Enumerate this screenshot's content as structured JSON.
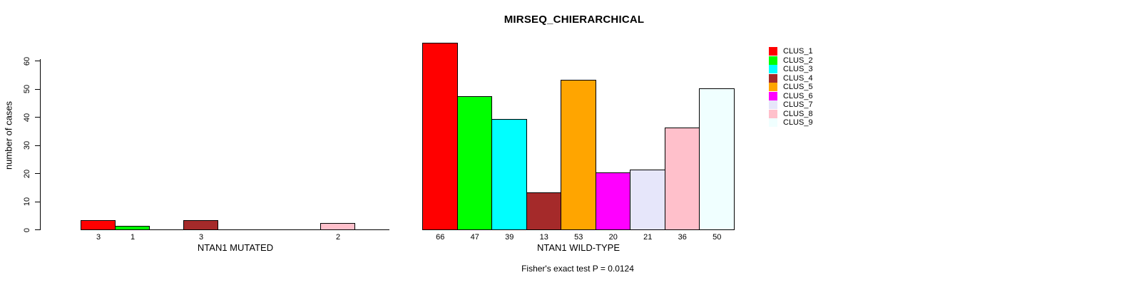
{
  "title": "MIRSEQ_CHIERARCHICAL",
  "annotation": "Fisher's exact test P = 0.0124",
  "palette": [
    "#FF0000",
    "#00FF00",
    "#00FFFF",
    "#A52A2A",
    "#FFA500",
    "#FF00FF",
    "#E6E6FA",
    "#FFC0CB",
    "#F0FFFF"
  ],
  "yaxis": {
    "label": "number of cases",
    "ticks": [
      0,
      10,
      20,
      30,
      40,
      50,
      60
    ],
    "range": [
      0,
      60
    ]
  },
  "legend": {
    "entries": [
      {
        "label": "CLUS_1",
        "color": "#FF0000"
      },
      {
        "label": "CLUS_2",
        "color": "#00FF00"
      },
      {
        "label": "CLUS_3",
        "color": "#00FFFF"
      },
      {
        "label": "CLUS_4",
        "color": "#A52A2A"
      },
      {
        "label": "CLUS_5",
        "color": "#FFA500"
      },
      {
        "label": "CLUS_6",
        "color": "#FF00FF"
      },
      {
        "label": "CLUS_7",
        "color": "#E6E6FA"
      },
      {
        "label": "CLUS_8",
        "color": "#FFC0CB"
      },
      {
        "label": "CLUS_9",
        "color": "#F0FFFF"
      }
    ]
  },
  "chart_data": [
    {
      "type": "bar",
      "panel": "mutated",
      "xlabel": "NTAN1 MUTATED",
      "ylabel": "number of cases",
      "ylim": [
        0,
        60
      ],
      "categories": [
        "CLUS_1",
        "CLUS_2",
        "CLUS_3",
        "CLUS_4",
        "CLUS_5",
        "CLUS_6",
        "CLUS_7",
        "CLUS_8",
        "CLUS_9"
      ],
      "values": [
        3,
        1,
        0,
        3,
        0,
        0,
        0,
        2,
        0
      ],
      "bar_labels": [
        "3",
        "1",
        "",
        "3",
        "",
        "",
        "",
        "2",
        ""
      ],
      "colors": [
        "#FF0000",
        "#00FF00",
        "#00FFFF",
        "#A52A2A",
        "#FFA500",
        "#FF00FF",
        "#E6E6FA",
        "#FFC0CB",
        "#F0FFFF"
      ],
      "grid": false,
      "legend_position": "right"
    },
    {
      "type": "bar",
      "panel": "wild-type",
      "xlabel": "NTAN1 WILD-TYPE",
      "ylabel": "number of cases",
      "ylim": [
        0,
        60
      ],
      "categories": [
        "CLUS_1",
        "CLUS_2",
        "CLUS_3",
        "CLUS_4",
        "CLUS_5",
        "CLUS_6",
        "CLUS_7",
        "CLUS_8",
        "CLUS_9"
      ],
      "values": [
        66,
        47,
        39,
        13,
        53,
        20,
        21,
        36,
        50
      ],
      "bar_labels": [
        "66",
        "47",
        "39",
        "13",
        "53",
        "20",
        "21",
        "36",
        "50"
      ],
      "colors": [
        "#FF0000",
        "#00FF00",
        "#00FFFF",
        "#A52A2A",
        "#FFA500",
        "#FF00FF",
        "#E6E6FA",
        "#FFC0CB",
        "#F0FFFF"
      ],
      "grid": false,
      "legend_position": "right"
    }
  ]
}
